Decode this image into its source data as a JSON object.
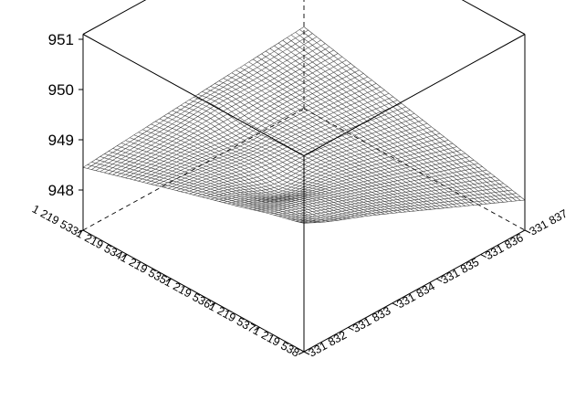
{
  "chart_data": {
    "type": "surface",
    "z_ticks": [
      "948",
      "949",
      "950",
      "951"
    ],
    "z_range": [
      947.2,
      951.1
    ],
    "x_ticks": [
      "1 219 533",
      "1 219 534",
      "1 219 535",
      "1 219 536",
      "1 219 537",
      "1 219 538"
    ],
    "x_range": [
      1219533,
      1219538
    ],
    "y_ticks": [
      "331 832",
      "331 833",
      "331 834",
      "331 835",
      "331 836",
      "331 837"
    ],
    "y_range": [
      331832,
      331837
    ],
    "grid": false,
    "surface": {
      "corner_z_at_x_min_y_min": 948.45,
      "corner_z_at_x_min_y_max": 948.83,
      "corner_z_at_x_max_y_min": 949.78,
      "corner_z_at_x_max_y_max": 947.8,
      "ridge_z": 947.85,
      "mesh_resolution": [
        52,
        52
      ]
    }
  }
}
